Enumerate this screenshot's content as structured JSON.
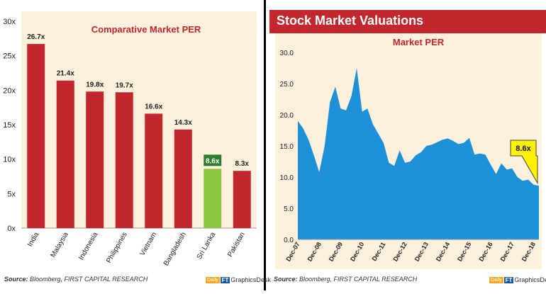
{
  "left": {
    "source_label": "Source:",
    "source_text": "Bloomberg, FIRST CAPITAL RESEARCH",
    "logo_text": "GraphicsDesk"
  },
  "right": {
    "header_title": "Stock Market Valuations",
    "source_label": "Source:",
    "source_text": "Bloomberg, FIRST CAPITAL RESEARCH",
    "logo_text": "GraphicsDesk"
  },
  "colors": {
    "panel_bg": "#fdf0dc",
    "bar_red": "#c1272d",
    "bar_green": "#8dc63f",
    "highlight_label_bg": "#2e7d32",
    "area_blue": "#1e90d6",
    "callout_yellow": "#fff200",
    "title_red": "#c1272d",
    "header_red": "#c1272d"
  },
  "chart_data": [
    {
      "type": "bar",
      "title": "Comparative Market PER",
      "categories": [
        "India",
        "Malaysia",
        "Indonesia",
        "Philippines",
        "Vietnam",
        "Bangladesh",
        "Sri Lanka",
        "Pakistan"
      ],
      "values": [
        26.7,
        21.4,
        19.8,
        19.7,
        16.6,
        14.3,
        8.6,
        8.3
      ],
      "value_labels": [
        "26.7x",
        "21.4x",
        "19.8x",
        "19.7x",
        "16.6x",
        "14.3x",
        "8.6x",
        "8.3x"
      ],
      "highlight_category": "Sri Lanka",
      "ylim": [
        0,
        30
      ],
      "yticks": [
        0,
        5,
        10,
        15,
        20,
        25,
        30
      ],
      "ytick_labels": [
        "0x",
        "5x",
        "10x",
        "15x",
        "20x",
        "25x",
        "30x"
      ],
      "grid": false,
      "legend": "none"
    },
    {
      "type": "area",
      "title": "Market PER",
      "xtick_labels": [
        "Dec-07",
        "Dec-08",
        "Dec-09",
        "Dec-10",
        "Dec-11",
        "Dec-12",
        "Dec-13",
        "Dec-14",
        "Dec-15",
        "Dec-16",
        "Dec-17",
        "Dec-18"
      ],
      "x_start": "Dec-07",
      "x_end": "Feb-19",
      "x_frequency": "quarterly",
      "values": [
        19.0,
        17.8,
        16.0,
        13.5,
        10.8,
        15.0,
        22.0,
        24.5,
        21.0,
        20.7,
        23.0,
        27.5,
        20.5,
        21.0,
        18.5,
        17.0,
        15.5,
        12.3,
        11.8,
        14.3,
        12.3,
        12.5,
        13.5,
        14.0,
        15.0,
        15.2,
        15.6,
        16.0,
        16.2,
        15.8,
        15.3,
        15.5,
        16.3,
        13.6,
        13.8,
        13.6,
        12.0,
        10.5,
        12.2,
        11.2,
        11.4,
        10.0,
        9.4,
        9.6,
        8.8,
        8.6
      ],
      "ylim": [
        0,
        30
      ],
      "yticks": [
        0,
        5,
        10,
        15,
        20,
        25,
        30
      ],
      "ytick_labels": [
        "0.0",
        "5.0",
        "10.0",
        "15.0",
        "20.0",
        "25.0",
        "30.0"
      ],
      "callout": "8.6x",
      "grid": false,
      "legend": "none"
    }
  ]
}
